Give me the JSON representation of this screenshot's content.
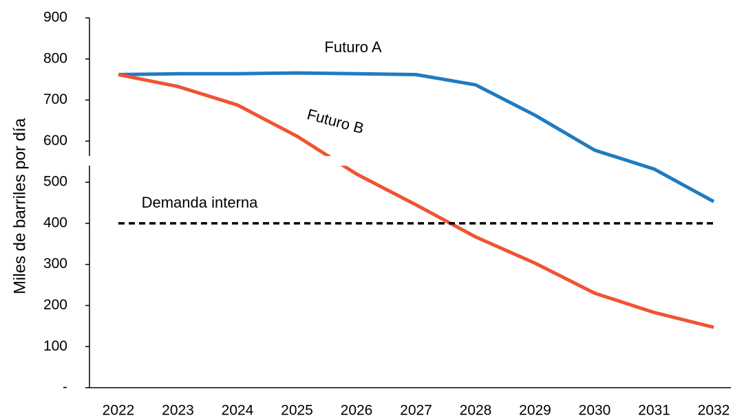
{
  "chart_data": {
    "type": "line",
    "y_label": "Miles de barriles por día",
    "categories": [
      "2022",
      "2023",
      "2024",
      "2025",
      "2026",
      "2027",
      "2028",
      "2029",
      "2030",
      "2031",
      "2032"
    ],
    "series": [
      {
        "name": "Futuro A",
        "color": "#1f7bc1",
        "values": [
          762,
          764,
          764,
          766,
          764,
          762,
          737,
          663,
          578,
          532,
          453
        ]
      },
      {
        "name": "Futuro B",
        "color": "#ef5433",
        "values": [
          762,
          733,
          688,
          612,
          520,
          445,
          367,
          303,
          230,
          183,
          147
        ]
      },
      {
        "name": "Demanda interna",
        "color": "#000000",
        "dashed": true,
        "values": [
          400,
          400,
          400,
          400,
          400,
          400,
          400,
          400,
          400,
          400,
          400
        ]
      }
    ],
    "ylim": [
      0,
      900
    ],
    "yticks": [
      {
        "value": 0,
        "label": "-"
      },
      100,
      200,
      300,
      400,
      500,
      600,
      700,
      800,
      900
    ]
  }
}
